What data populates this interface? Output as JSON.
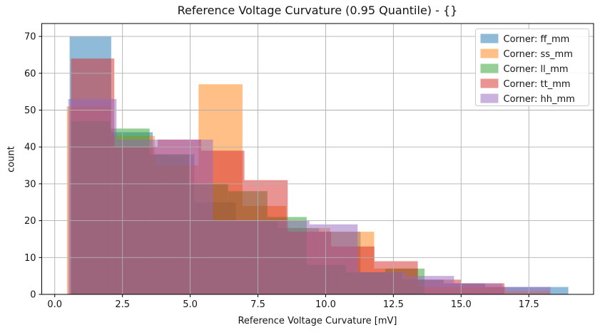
{
  "chart_data": {
    "type": "histogram-overlay",
    "title": "Reference Voltage Curvature (0.95 Quantile) - {}",
    "xlabel": "Reference Voltage Curvature [mV]",
    "ylabel": "count",
    "xlim": [
      -0.48,
      19.89
    ],
    "ylim": [
      0,
      73.5
    ],
    "xticks": [
      0.0,
      2.5,
      5.0,
      7.5,
      10.0,
      12.5,
      15.0,
      17.5
    ],
    "xtick_labels": [
      "0.0",
      "2.5",
      "5.0",
      "7.5",
      "10.0",
      "12.5",
      "15.0",
      "17.5"
    ],
    "yticks": [
      0,
      10,
      20,
      30,
      40,
      50,
      60,
      70
    ],
    "ytick_labels": [
      "0",
      "10",
      "20",
      "30",
      "40",
      "50",
      "60",
      "70"
    ],
    "grid": true,
    "grid_color": "#b0b0b0",
    "bar_alpha": 0.5,
    "legend_position": "upper right",
    "legend_border_color": "#cccccc",
    "series": [
      {
        "name": "Corner: ff_mm",
        "color": "#1f77b4",
        "bin_start": 0.55,
        "bin_width": 1.534,
        "counts": [
          70,
          44,
          38,
          25,
          20,
          18,
          17,
          6,
          4,
          3,
          2,
          2
        ]
      },
      {
        "name": "Corner: ss_mm",
        "color": "#ff7f0e",
        "bin_start": 0.45,
        "bin_width": 1.62,
        "counts": [
          51,
          43,
          35,
          57,
          24,
          18,
          17,
          7,
          2,
          2,
          1
        ]
      },
      {
        "name": "Corner: ll_mm",
        "color": "#2ca02c",
        "bin_start": 0.6,
        "bin_width": 1.45,
        "counts": [
          47,
          45,
          38,
          30,
          28,
          21,
          8,
          6,
          7
        ]
      },
      {
        "name": "Corner: tt_mm",
        "color": "#d62728",
        "bin_start": 0.6,
        "bin_width": 1.6,
        "counts": [
          64,
          40,
          42,
          39,
          31,
          17,
          13,
          9,
          4,
          3
        ]
      },
      {
        "name": "Corner: hh_mm",
        "color": "#9467bd",
        "bin_start": 0.5,
        "bin_width": 1.78,
        "counts": [
          53,
          42,
          42,
          20,
          20,
          19,
          6,
          5,
          3,
          2
        ]
      }
    ]
  }
}
